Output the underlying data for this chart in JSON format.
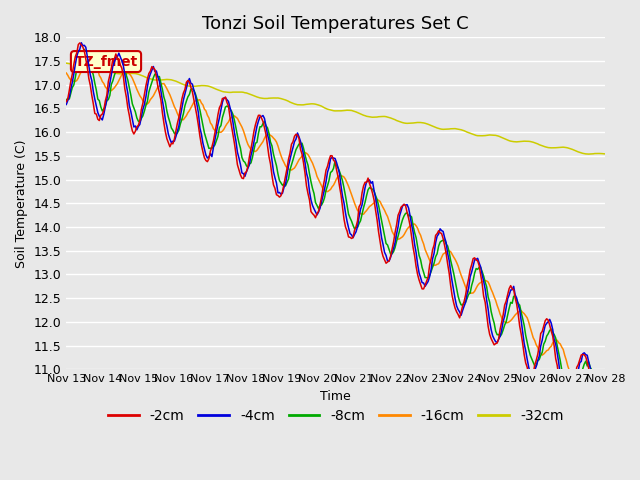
{
  "title": "Tonzi Soil Temperatures Set C",
  "xlabel": "Time",
  "ylabel": "Soil Temperature (C)",
  "ylim": [
    11.0,
    18.0
  ],
  "yticks": [
    11.0,
    11.5,
    12.0,
    12.5,
    13.0,
    13.5,
    14.0,
    14.5,
    15.0,
    15.5,
    16.0,
    16.5,
    17.0,
    17.5,
    18.0
  ],
  "xtick_labels": [
    "Nov 13",
    "Nov 14",
    "Nov 15",
    "Nov 16",
    "Nov 17",
    "Nov 18",
    "Nov 19",
    "Nov 20",
    "Nov 21",
    "Nov 22",
    "Nov 23",
    "Nov 24",
    "Nov 25",
    "Nov 26",
    "Nov 27",
    "Nov 28"
  ],
  "legend_labels": [
    "-2cm",
    "-4cm",
    "-8cm",
    "-16cm",
    "-32cm"
  ],
  "line_colors": [
    "#dd0000",
    "#0000dd",
    "#00aa00",
    "#ff8800",
    "#cccc00"
  ],
  "annotation_text": "TZ_fmet",
  "annotation_color": "#cc0000",
  "annotation_bg": "#ffffcc",
  "plot_bg": "#e8e8e8",
  "grid_color": "#ffffff",
  "title_fontsize": 13,
  "axis_fontsize": 9,
  "legend_fontsize": 10
}
